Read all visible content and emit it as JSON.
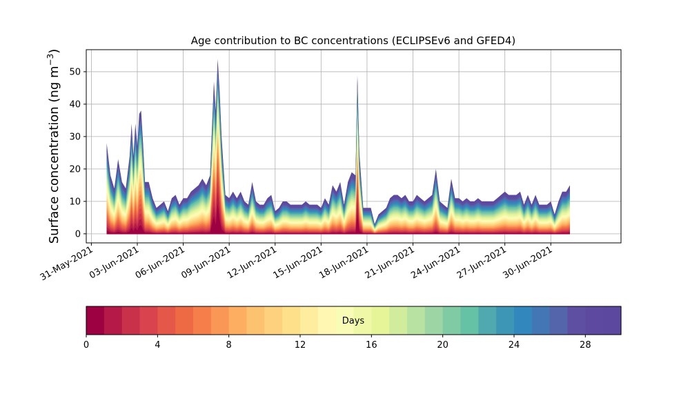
{
  "chart_data": [
    {
      "type": "area",
      "title": "Age contribution to BC concentrations (ECLIPSEv6 and GFED4)",
      "ylabel_main": "Surface concentration (ng m",
      "ylabel_sup": "−3",
      "ylabel_close": ")",
      "ylim": [
        -2.8,
        56.8
      ],
      "yticks": [
        0,
        10,
        20,
        30,
        40,
        50
      ],
      "xlim": [
        "2021-05-30T16:00",
        "2021-07-04T14:00"
      ],
      "xticks": [
        {
          "date": "2021-05-31",
          "label": "31-May-2021"
        },
        {
          "date": "2021-06-03",
          "label": "03-Jun-2021"
        },
        {
          "date": "2021-06-06",
          "label": "06-Jun-2021"
        },
        {
          "date": "2021-06-09",
          "label": "09-Jun-2021"
        },
        {
          "date": "2021-06-12",
          "label": "12-Jun-2021"
        },
        {
          "date": "2021-06-15",
          "label": "15-Jun-2021"
        },
        {
          "date": "2021-06-18",
          "label": "18-Jun-2021"
        },
        {
          "date": "2021-06-21",
          "label": "21-Jun-2021"
        },
        {
          "date": "2021-06-24",
          "label": "24-Jun-2021"
        },
        {
          "date": "2021-06-27",
          "label": "27-Jun-2021"
        },
        {
          "date": "2021-06-30",
          "label": "30-Jun-2021"
        }
      ],
      "grid": true,
      "series_note_total": [
        [
          "2021-06-01T00",
          28
        ],
        [
          "2021-06-01T06",
          18
        ],
        [
          "2021-06-01T12",
          14
        ],
        [
          "2021-06-01T18",
          23
        ],
        [
          "2021-06-02T00",
          16
        ],
        [
          "2021-06-02T06",
          14
        ],
        [
          "2021-06-02T12",
          24
        ],
        [
          "2021-06-02T15",
          34
        ],
        [
          "2021-06-02T18",
          24
        ],
        [
          "2021-06-02T21",
          34
        ],
        [
          "2021-06-03T00",
          27
        ],
        [
          "2021-06-03T03",
          37
        ],
        [
          "2021-06-03T06",
          38
        ],
        [
          "2021-06-03T09",
          28
        ],
        [
          "2021-06-03T12",
          16
        ],
        [
          "2021-06-03T18",
          16
        ],
        [
          "2021-06-04T00",
          11
        ],
        [
          "2021-06-04T06",
          8
        ],
        [
          "2021-06-04T12",
          9
        ],
        [
          "2021-06-04T18",
          10
        ],
        [
          "2021-06-05T00",
          7
        ],
        [
          "2021-06-05T06",
          11
        ],
        [
          "2021-06-05T12",
          12
        ],
        [
          "2021-06-05T18",
          9
        ],
        [
          "2021-06-06T00",
          11
        ],
        [
          "2021-06-06T06",
          11
        ],
        [
          "2021-06-06T12",
          13
        ],
        [
          "2021-06-06T18",
          14
        ],
        [
          "2021-06-07T00",
          15
        ],
        [
          "2021-06-07T06",
          17
        ],
        [
          "2021-06-07T12",
          15
        ],
        [
          "2021-06-07T18",
          18
        ],
        [
          "2021-06-08T00",
          47
        ],
        [
          "2021-06-08T03",
          38
        ],
        [
          "2021-06-08T06",
          54
        ],
        [
          "2021-06-08T09",
          44
        ],
        [
          "2021-06-08T12",
          30
        ],
        [
          "2021-06-08T18",
          12
        ],
        [
          "2021-06-09T00",
          11
        ],
        [
          "2021-06-09T06",
          13
        ],
        [
          "2021-06-09T12",
          11
        ],
        [
          "2021-06-09T18",
          13
        ],
        [
          "2021-06-10T00",
          10
        ],
        [
          "2021-06-10T06",
          9
        ],
        [
          "2021-06-10T12",
          16
        ],
        [
          "2021-06-10T18",
          10
        ],
        [
          "2021-06-11T00",
          9
        ],
        [
          "2021-06-11T06",
          9
        ],
        [
          "2021-06-11T12",
          11
        ],
        [
          "2021-06-11T18",
          12
        ],
        [
          "2021-06-12T00",
          7
        ],
        [
          "2021-06-12T06",
          8
        ],
        [
          "2021-06-12T12",
          10
        ],
        [
          "2021-06-12T18",
          10
        ],
        [
          "2021-06-13T00",
          9
        ],
        [
          "2021-06-13T06",
          9
        ],
        [
          "2021-06-13T12",
          9
        ],
        [
          "2021-06-13T18",
          9
        ],
        [
          "2021-06-14T00",
          10
        ],
        [
          "2021-06-14T06",
          9
        ],
        [
          "2021-06-14T12",
          9
        ],
        [
          "2021-06-14T18",
          9
        ],
        [
          "2021-06-15T00",
          8
        ],
        [
          "2021-06-15T06",
          11
        ],
        [
          "2021-06-15T12",
          9
        ],
        [
          "2021-06-15T18",
          15
        ],
        [
          "2021-06-16T00",
          13
        ],
        [
          "2021-06-16T06",
          16
        ],
        [
          "2021-06-16T12",
          9
        ],
        [
          "2021-06-16T18",
          16
        ],
        [
          "2021-06-17T00",
          19
        ],
        [
          "2021-06-17T06",
          18
        ],
        [
          "2021-06-17T09",
          49
        ],
        [
          "2021-06-17T12",
          25
        ],
        [
          "2021-06-17T18",
          8
        ],
        [
          "2021-06-18T00",
          8
        ],
        [
          "2021-06-18T06",
          8
        ],
        [
          "2021-06-18T12",
          3
        ],
        [
          "2021-06-18T18",
          6
        ],
        [
          "2021-06-19T00",
          7
        ],
        [
          "2021-06-19T06",
          8
        ],
        [
          "2021-06-19T12",
          11
        ],
        [
          "2021-06-19T18",
          12
        ],
        [
          "2021-06-20T00",
          12
        ],
        [
          "2021-06-20T06",
          11
        ],
        [
          "2021-06-20T12",
          12
        ],
        [
          "2021-06-20T18",
          10
        ],
        [
          "2021-06-21T00",
          10
        ],
        [
          "2021-06-21T06",
          12
        ],
        [
          "2021-06-21T12",
          11
        ],
        [
          "2021-06-21T18",
          10
        ],
        [
          "2021-06-22T00",
          11
        ],
        [
          "2021-06-22T06",
          12
        ],
        [
          "2021-06-22T12",
          20
        ],
        [
          "2021-06-22T18",
          10
        ],
        [
          "2021-06-23T00",
          9
        ],
        [
          "2021-06-23T06",
          8
        ],
        [
          "2021-06-23T12",
          17
        ],
        [
          "2021-06-23T18",
          11
        ],
        [
          "2021-06-24T00",
          11
        ],
        [
          "2021-06-24T06",
          10
        ],
        [
          "2021-06-24T12",
          11
        ],
        [
          "2021-06-24T18",
          10
        ],
        [
          "2021-06-25T00",
          10
        ],
        [
          "2021-06-25T06",
          11
        ],
        [
          "2021-06-25T12",
          10
        ],
        [
          "2021-06-25T18",
          10
        ],
        [
          "2021-06-26T00",
          10
        ],
        [
          "2021-06-26T06",
          10
        ],
        [
          "2021-06-26T12",
          11
        ],
        [
          "2021-06-26T18",
          12
        ],
        [
          "2021-06-27T00",
          13
        ],
        [
          "2021-06-27T06",
          12
        ],
        [
          "2021-06-27T12",
          12
        ],
        [
          "2021-06-27T18",
          12
        ],
        [
          "2021-06-28T00",
          13
        ],
        [
          "2021-06-28T06",
          9
        ],
        [
          "2021-06-28T12",
          12
        ],
        [
          "2021-06-28T18",
          9
        ],
        [
          "2021-06-29T00",
          12
        ],
        [
          "2021-06-29T06",
          9
        ],
        [
          "2021-06-29T12",
          9
        ],
        [
          "2021-06-29T18",
          9
        ],
        [
          "2021-06-30T00",
          10
        ],
        [
          "2021-06-30T06",
          6
        ],
        [
          "2021-06-30T12",
          10
        ],
        [
          "2021-06-30T18",
          13
        ],
        [
          "2021-07-01T00",
          13
        ],
        [
          "2021-07-01T06",
          15
        ]
      ]
    },
    {
      "type": "colorbar",
      "label": "Days",
      "range": [
        0,
        30
      ],
      "ticks": [
        0,
        4,
        8,
        12,
        16,
        20,
        24,
        28
      ],
      "colors": [
        "#9e0142",
        "#b41947",
        "#c9314b",
        "#d8434e",
        "#e45749",
        "#ee6a45",
        "#f67e4b",
        "#fa9757",
        "#fdae61",
        "#fdc26f",
        "#fed17f",
        "#fee08b",
        "#feec9f",
        "#fff7b2",
        "#f8fcb4",
        "#eef8a6",
        "#e6f598",
        "#d0ec9c",
        "#b8e2a1",
        "#9dd6a4",
        "#80cba4",
        "#66c2a5",
        "#50a9af",
        "#3e96b6",
        "#3288bd",
        "#4376b4",
        "#5465ab",
        "#5e4fa2",
        "#5d4aa0",
        "#5c489f"
      ]
    }
  ]
}
